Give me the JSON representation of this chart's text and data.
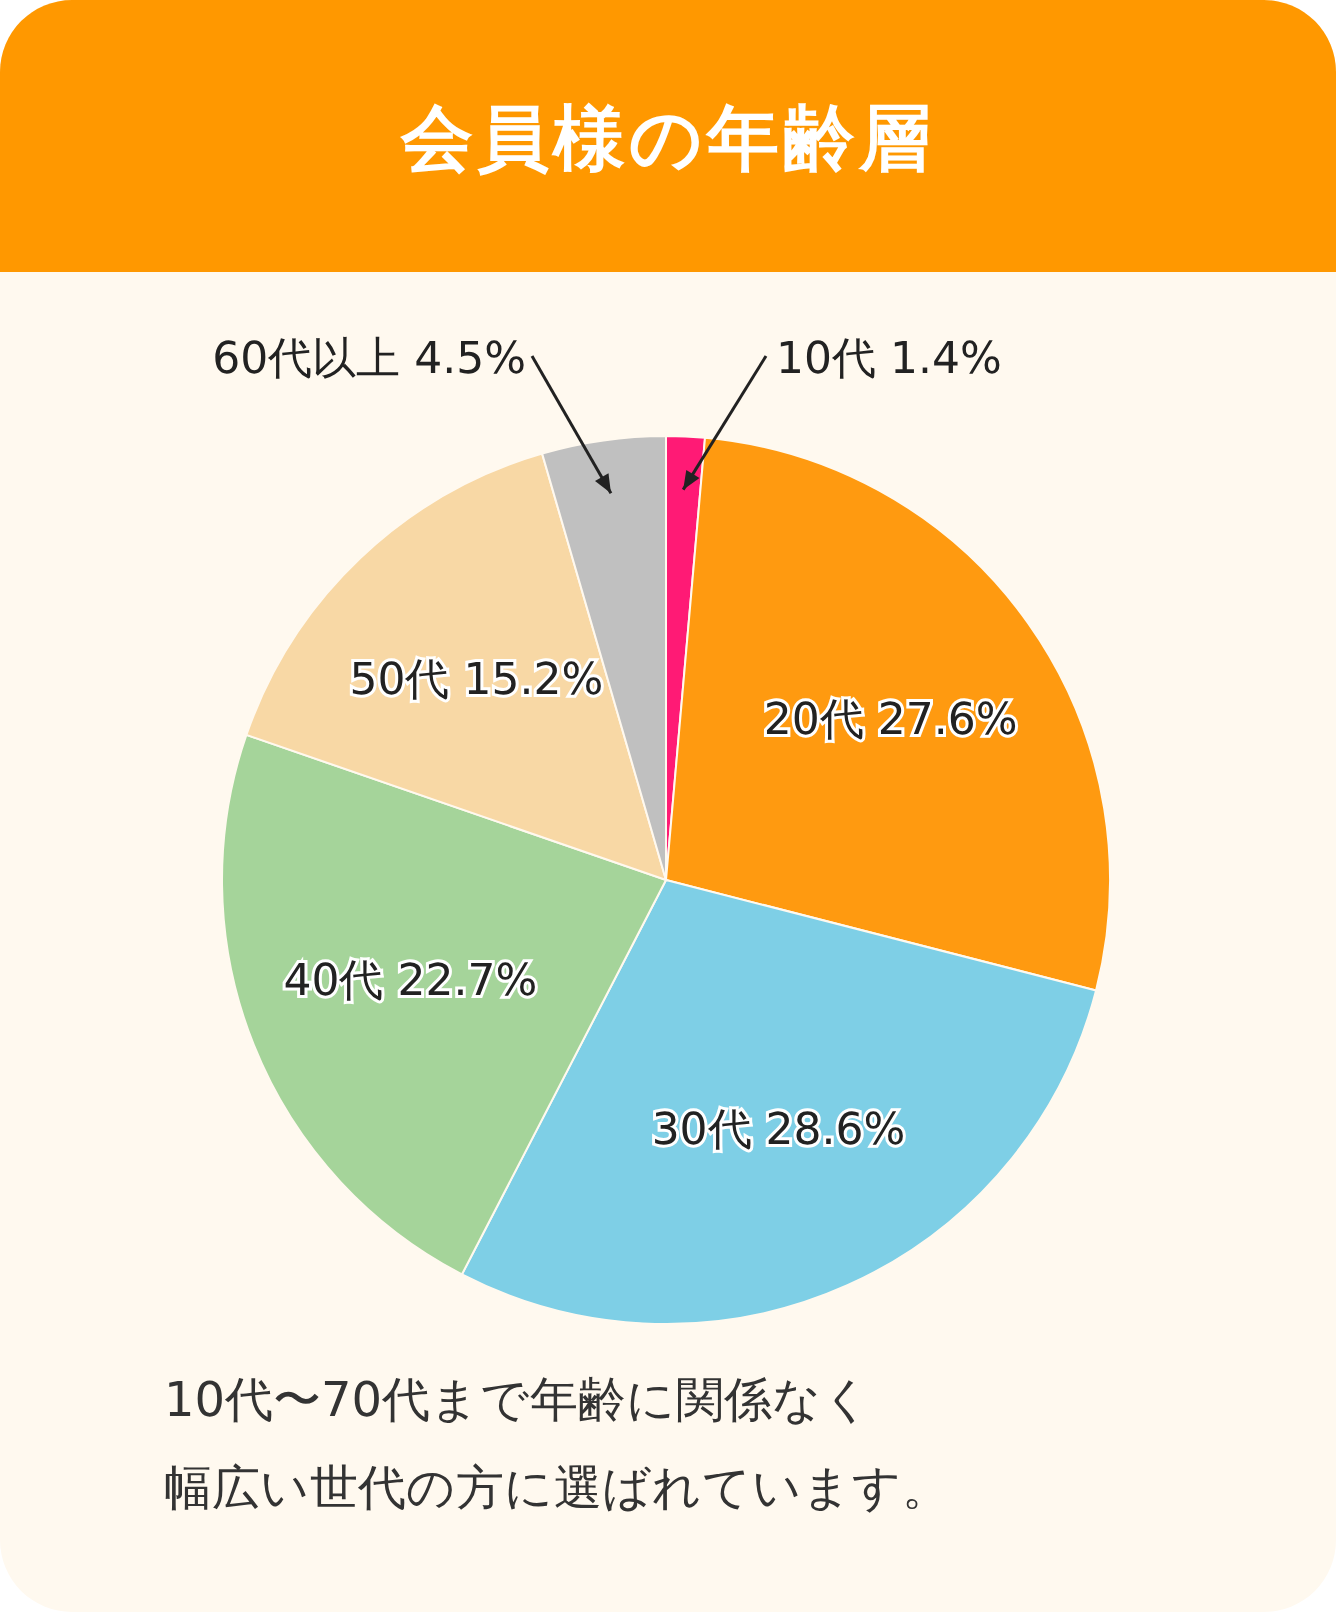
{
  "chart_data": {
    "type": "pie",
    "title": "会員様の年齢層",
    "categories": [
      "10代",
      "20代",
      "30代",
      "40代",
      "50代",
      "60代以上"
    ],
    "values": [
      1.4,
      27.6,
      28.6,
      22.7,
      15.2,
      4.5
    ],
    "value_labels": [
      "1.4%",
      "27.6%",
      "28.6%",
      "22.7%",
      "15.2%",
      "4.5%"
    ],
    "colors": [
      "#ff1a75",
      "#ff9a10",
      "#7ecfe6",
      "#a5d49a",
      "#f8d8a5",
      "#c0c0c0"
    ],
    "annotations": [
      "10代〜70代まで年齢に関係なく",
      "幅広い世代の方に選ばれています。"
    ]
  }
}
